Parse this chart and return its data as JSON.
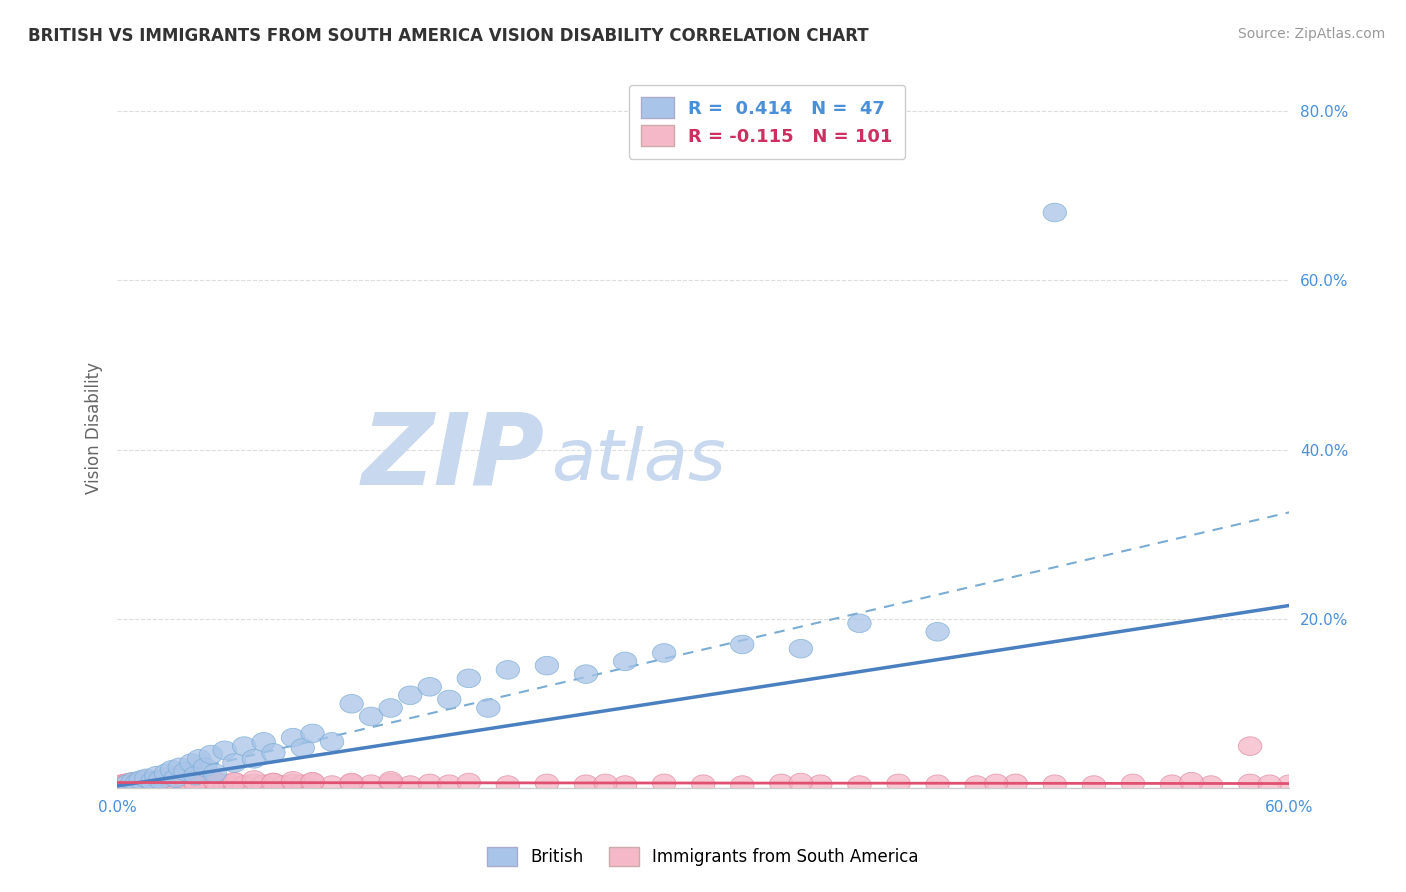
{
  "title": "BRITISH VS IMMIGRANTS FROM SOUTH AMERICA VISION DISABILITY CORRELATION CHART",
  "source": "Source: ZipAtlas.com",
  "ylabel": "Vision Disability",
  "x_min": 0.0,
  "x_max": 0.6,
  "y_min": 0.0,
  "y_max": 0.85,
  "legend_entries": [
    {
      "label": "British",
      "color": "#a8c4e8",
      "edge_color": "#7aacd4",
      "R": 0.414,
      "N": 47
    },
    {
      "label": "Immigrants from South America",
      "color": "#f4b8c8",
      "edge_color": "#e088a0",
      "R": -0.115,
      "N": 101
    }
  ],
  "trend_british_color": "#4a7fc0",
  "trend_dashed_color": "#7aacd4",
  "trend_immigrants_color": "#e05070",
  "watermark_zip_color": "#c8d8ee",
  "watermark_atlas_color": "#c8d8ee",
  "background_color": "#ffffff",
  "grid_color": "#dddddd",
  "title_color": "#333333",
  "axis_tick_color": "#4a90d9",
  "brit_x": [
    0.005,
    0.008,
    0.01,
    0.012,
    0.015,
    0.018,
    0.02,
    0.022,
    0.025,
    0.028,
    0.03,
    0.032,
    0.035,
    0.038,
    0.04,
    0.042,
    0.045,
    0.048,
    0.05,
    0.055,
    0.06,
    0.065,
    0.07,
    0.075,
    0.08,
    0.09,
    0.095,
    0.1,
    0.11,
    0.12,
    0.13,
    0.14,
    0.15,
    0.16,
    0.17,
    0.18,
    0.19,
    0.2,
    0.22,
    0.24,
    0.26,
    0.28,
    0.32,
    0.35,
    0.38,
    0.42,
    0.48
  ],
  "brit_y": [
    0.005,
    0.008,
    0.006,
    0.01,
    0.012,
    0.008,
    0.015,
    0.01,
    0.018,
    0.022,
    0.012,
    0.025,
    0.02,
    0.03,
    0.015,
    0.035,
    0.025,
    0.04,
    0.018,
    0.045,
    0.03,
    0.05,
    0.035,
    0.055,
    0.042,
    0.06,
    0.048,
    0.065,
    0.055,
    0.1,
    0.085,
    0.095,
    0.11,
    0.12,
    0.105,
    0.13,
    0.095,
    0.14,
    0.145,
    0.135,
    0.15,
    0.16,
    0.17,
    0.165,
    0.195,
    0.185,
    0.68
  ],
  "imm_x": [
    0.002,
    0.003,
    0.004,
    0.005,
    0.006,
    0.007,
    0.008,
    0.009,
    0.01,
    0.011,
    0.012,
    0.013,
    0.014,
    0.015,
    0.016,
    0.017,
    0.018,
    0.019,
    0.02,
    0.021,
    0.022,
    0.023,
    0.024,
    0.025,
    0.026,
    0.027,
    0.028,
    0.029,
    0.03,
    0.032,
    0.034,
    0.036,
    0.038,
    0.04,
    0.042,
    0.044,
    0.046,
    0.048,
    0.05,
    0.052,
    0.055,
    0.058,
    0.06,
    0.065,
    0.07,
    0.075,
    0.08,
    0.085,
    0.09,
    0.095,
    0.1,
    0.11,
    0.12,
    0.13,
    0.14,
    0.15,
    0.16,
    0.17,
    0.18,
    0.2,
    0.22,
    0.24,
    0.26,
    0.28,
    0.3,
    0.32,
    0.34,
    0.36,
    0.38,
    0.4,
    0.42,
    0.44,
    0.46,
    0.48,
    0.5,
    0.52,
    0.54,
    0.56,
    0.58,
    0.6,
    0.01,
    0.015,
    0.02,
    0.025,
    0.03,
    0.035,
    0.04,
    0.05,
    0.06,
    0.07,
    0.08,
    0.09,
    0.1,
    0.12,
    0.14,
    0.25,
    0.35,
    0.45,
    0.55,
    0.58,
    0.59
  ],
  "imm_y": [
    0.005,
    0.004,
    0.006,
    0.005,
    0.007,
    0.004,
    0.006,
    0.005,
    0.008,
    0.005,
    0.007,
    0.004,
    0.006,
    0.005,
    0.007,
    0.004,
    0.006,
    0.005,
    0.008,
    0.004,
    0.006,
    0.005,
    0.007,
    0.004,
    0.006,
    0.005,
    0.007,
    0.004,
    0.006,
    0.005,
    0.007,
    0.004,
    0.006,
    0.005,
    0.007,
    0.004,
    0.006,
    0.005,
    0.007,
    0.004,
    0.006,
    0.005,
    0.007,
    0.004,
    0.006,
    0.005,
    0.007,
    0.004,
    0.006,
    0.005,
    0.007,
    0.004,
    0.006,
    0.005,
    0.007,
    0.004,
    0.006,
    0.005,
    0.007,
    0.004,
    0.006,
    0.005,
    0.004,
    0.006,
    0.005,
    0.004,
    0.006,
    0.005,
    0.004,
    0.006,
    0.005,
    0.004,
    0.006,
    0.005,
    0.004,
    0.006,
    0.005,
    0.004,
    0.006,
    0.005,
    0.008,
    0.01,
    0.007,
    0.009,
    0.008,
    0.01,
    0.007,
    0.009,
    0.008,
    0.01,
    0.007,
    0.009,
    0.008,
    0.007,
    0.009,
    0.006,
    0.007,
    0.006,
    0.008,
    0.05,
    0.005
  ]
}
